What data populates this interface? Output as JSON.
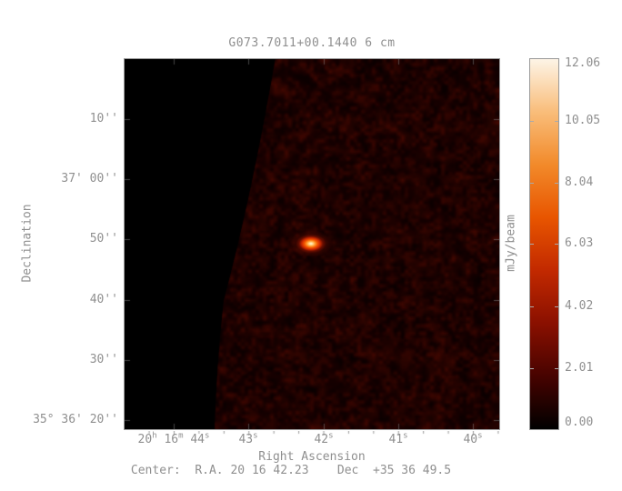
{
  "figure": {
    "title": "G073.7011+00.1440 6 cm",
    "xlabel": "Right Ascension",
    "ylabel": "Declination",
    "caption": "Center:  R.A. 20 16 42.23    Dec  +35 36 49.5"
  },
  "axes": {
    "x_ticks": [
      {
        "html": "20<sup>h</sup> 16<sup>m</sup> 44<sup>s</sup>",
        "label": "20h 16m 44s"
      },
      {
        "html": "43<sup>s</sup>",
        "label": "43s"
      },
      {
        "html": "42<sup>s</sup>",
        "label": "42s"
      },
      {
        "html": "41<sup>s</sup>",
        "label": "41s"
      },
      {
        "html": "40<sup>s</sup>",
        "label": "40s"
      }
    ],
    "y_ticks": [
      {
        "label": "10''"
      },
      {
        "label": "37' 00''"
      },
      {
        "label": "50''"
      },
      {
        "label": "40''"
      },
      {
        "label": "30''"
      },
      {
        "label": "35° 36' 20''"
      }
    ]
  },
  "colorbar": {
    "label": "mJy/beam",
    "tick_labels": [
      "12.06",
      "10.05",
      "8.04",
      "6.03",
      "4.02",
      "2.01",
      "0.00"
    ],
    "min": 0.0,
    "max": 12.06,
    "stops": [
      "#000000",
      "#470300",
      "#8a1000",
      "#c22900",
      "#e85500",
      "#f28a2a",
      "#f9bd7a",
      "#fdf4e6"
    ]
  },
  "colors": {
    "background": "#ffffff",
    "annotation_gray": "#8f8f8f",
    "blanked_region": "#000000",
    "noise_dark": "#1a0200",
    "noise_bright": "#4d0700",
    "source_peak": "#fff3d8",
    "beam_marker": "#ffffff"
  },
  "chart_data": {
    "type": "heatmap",
    "title": "G073.7011+00.1440 6 cm",
    "xlabel": "Right Ascension",
    "ylabel": "Declination",
    "x_tick_labels": [
      "20h 16m 44s",
      "43s",
      "42s",
      "41s",
      "40s"
    ],
    "y_tick_labels": [
      "10''",
      "37' 00''",
      "50''",
      "40''",
      "30''",
      "35° 36' 20''"
    ],
    "x_axis": {
      "direction": "RA increases to the left",
      "span_seconds": 5
    },
    "y_axis": {
      "direction": "Dec increases upward",
      "span_arcsec": 62
    },
    "colorbar": {
      "label": "mJy/beam",
      "ticks": [
        0.0,
        2.01,
        4.02,
        6.03,
        8.04,
        10.05,
        12.06
      ],
      "range": [
        0.0,
        12.06
      ],
      "colormap": "heat (black-red-orange-white)"
    },
    "center": {
      "ra": "20 16 42.23",
      "dec": "+35 36 49.5"
    },
    "source": {
      "description": "single compact source at field center, slightly elongated E-W",
      "ra": "20 16 42.2",
      "dec": "+35 36 49.5",
      "peak_mJy_per_beam": 12.06
    },
    "background": {
      "noise_mJy_per_beam": [
        0.0,
        1.5
      ],
      "blanked_region": "black region left of curved primary-beam edge"
    },
    "beam_marker": {
      "position": "bottom-left corner of map",
      "shape": "small filled white circle"
    }
  }
}
